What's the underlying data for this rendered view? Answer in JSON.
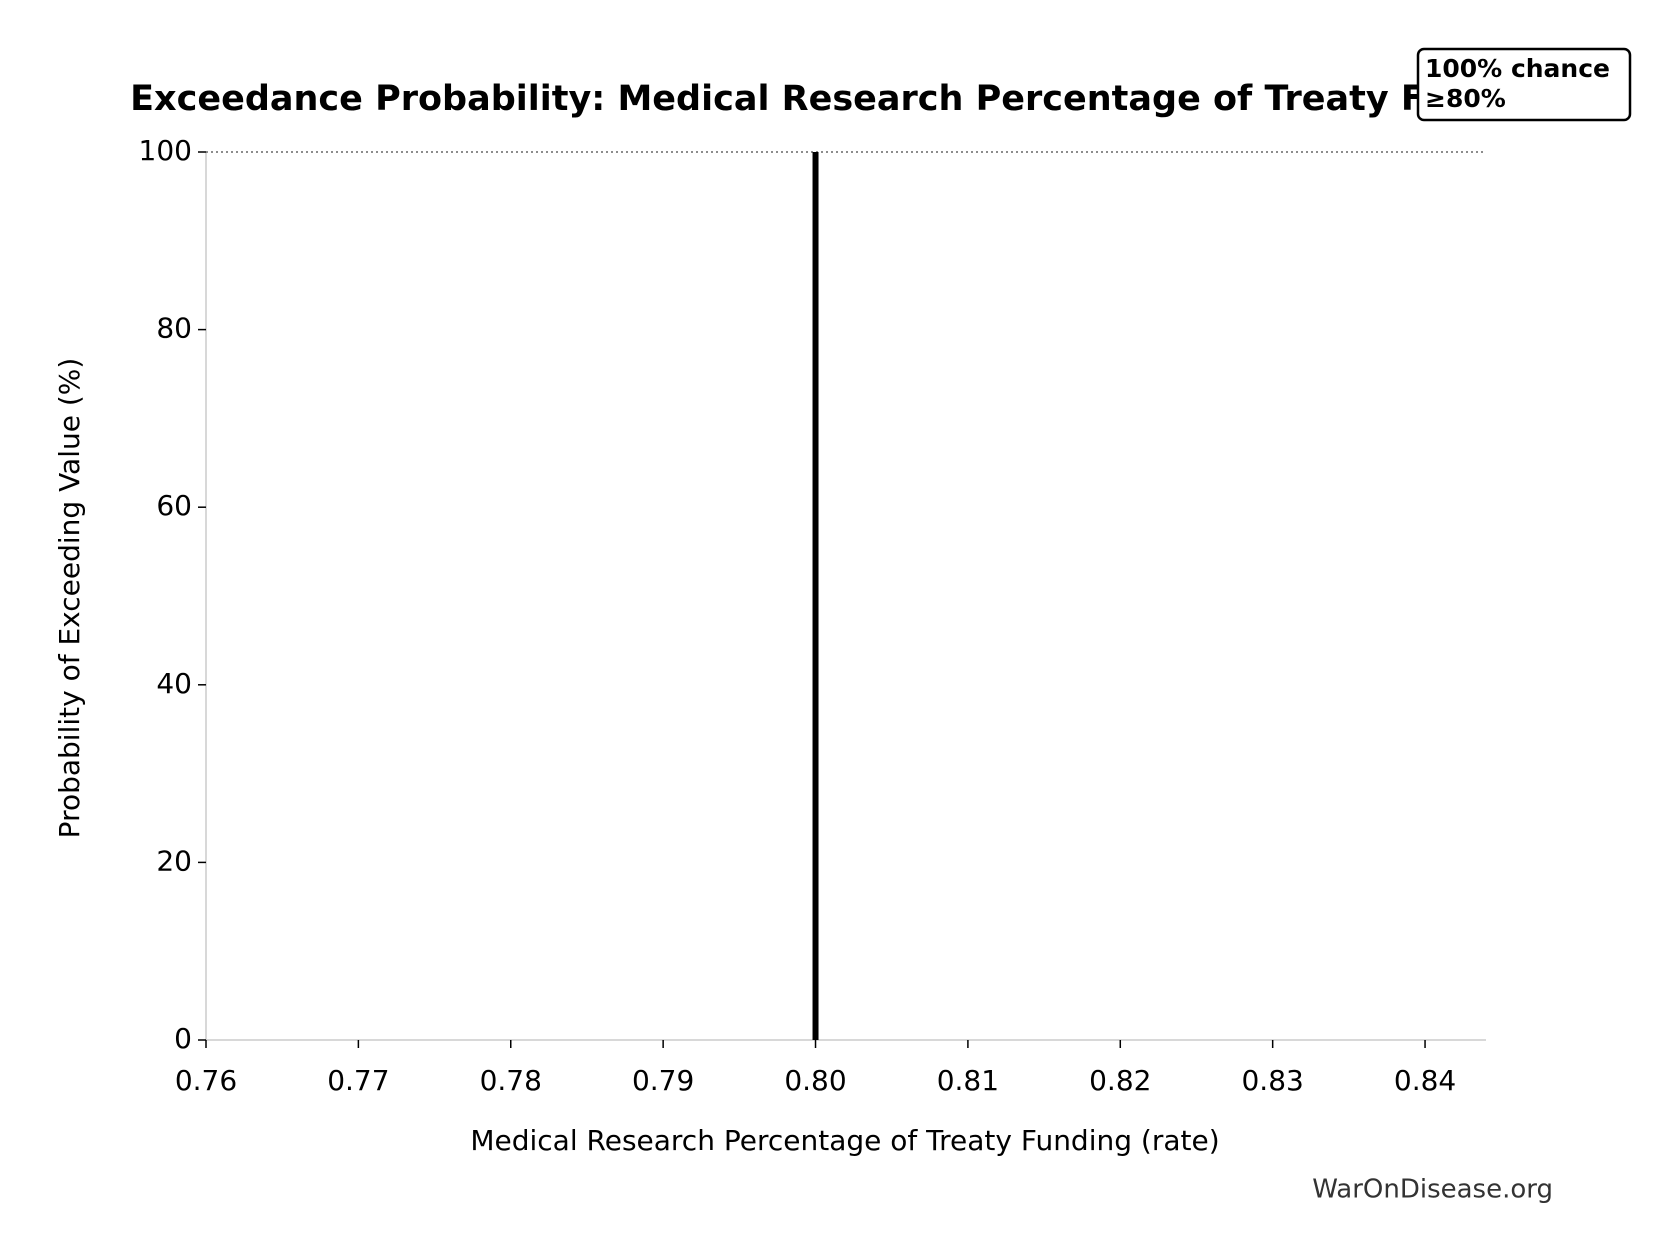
{
  "chart_data": {
    "type": "line",
    "title": "Exceedance Probability: Medical Research Percentage of Treaty Funding",
    "xlabel": "Medical Research Percentage of Treaty Funding (rate)",
    "ylabel": "Probability of Exceeding Value (%)",
    "annotation": [
      "100% chance",
      "≥80%"
    ],
    "watermark": "WarOnDisease.org",
    "series": [
      {
        "color": "#000000",
        "x": [
          0.8,
          0.8
        ],
        "values": [
          100,
          0
        ]
      }
    ],
    "hline": {
      "value": 100,
      "color": "#666666",
      "style": "dotted"
    },
    "xlim": [
      0.76,
      0.844
    ],
    "ylim": [
      0,
      100
    ],
    "xticks": [
      0.76,
      0.77,
      0.78,
      0.79,
      {
        "value": 0.8,
        "label": "0.80"
      },
      0.81,
      0.82,
      0.83,
      0.84
    ],
    "yticks": [
      0,
      20,
      40,
      60,
      80,
      100
    ],
    "grid": false
  }
}
